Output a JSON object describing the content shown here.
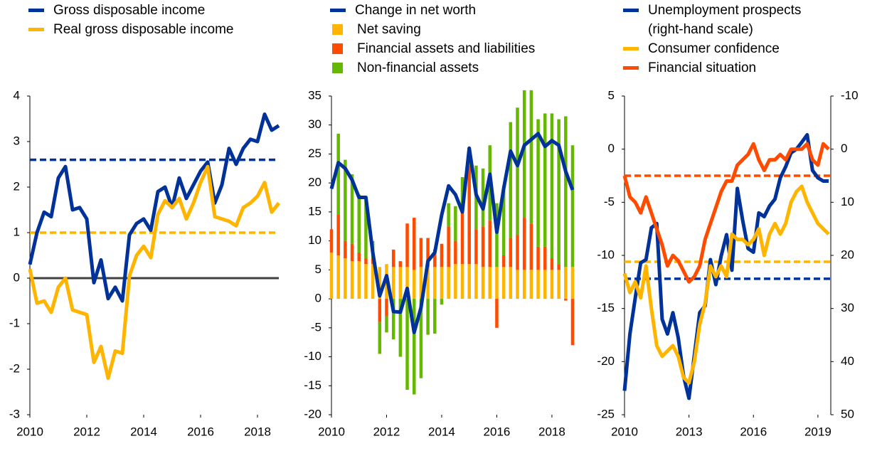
{
  "chart_data": [
    {
      "type": "line",
      "x": [
        2010,
        2010.25,
        2010.5,
        2010.75,
        2011,
        2011.25,
        2011.5,
        2011.75,
        2012,
        2012.25,
        2012.5,
        2012.75,
        2013,
        2013.25,
        2013.5,
        2013.75,
        2014,
        2014.25,
        2014.5,
        2014.75,
        2015,
        2015.25,
        2015.5,
        2015.75,
        2016,
        2016.25,
        2016.5,
        2016.75,
        2017,
        2017.25,
        2017.5,
        2017.75,
        2018,
        2018.25,
        2018.5,
        2018.75
      ],
      "series": [
        {
          "name": "Gross disposable income",
          "color": "#003299",
          "values": [
            0.3,
            1.0,
            1.45,
            1.35,
            2.2,
            2.45,
            1.5,
            1.55,
            1.3,
            -0.1,
            0.4,
            -0.45,
            -0.2,
            -0.5,
            0.95,
            1.2,
            1.3,
            1.05,
            1.9,
            2.0,
            1.55,
            2.2,
            1.75,
            2.05,
            2.35,
            2.55,
            1.65,
            2.05,
            2.85,
            2.5,
            2.85,
            3.05,
            3.0,
            3.6,
            3.25,
            3.35
          ]
        },
        {
          "name": "Real gross disposable income",
          "color": "#ffb400",
          "values": [
            0.2,
            -0.55,
            -0.5,
            -0.75,
            -0.2,
            0.0,
            -0.7,
            -0.75,
            -0.8,
            -1.85,
            -1.5,
            -2.2,
            -1.6,
            -1.65,
            0.05,
            0.5,
            0.7,
            0.45,
            1.4,
            1.7,
            1.55,
            1.75,
            1.3,
            1.65,
            2.1,
            2.45,
            1.35,
            1.3,
            1.25,
            1.15,
            1.55,
            1.65,
            1.8,
            2.1,
            1.45,
            1.65
          ]
        }
      ],
      "hlines": [
        {
          "value": 2.6,
          "color": "#003299"
        },
        {
          "value": 1.0,
          "color": "#ffb400"
        }
      ],
      "zero_line": true,
      "xlim": [
        2010,
        2018.75
      ],
      "xticks": [
        2010,
        2012,
        2014,
        2016,
        2018
      ],
      "ylim": [
        -3,
        4
      ],
      "yticks": [
        -3,
        -2,
        -1,
        0,
        1,
        2,
        3,
        4
      ]
    },
    {
      "type": "bar",
      "x": [
        2010,
        2010.25,
        2010.5,
        2010.75,
        2011,
        2011.25,
        2011.5,
        2011.75,
        2012,
        2012.25,
        2012.5,
        2012.75,
        2013,
        2013.25,
        2013.5,
        2013.75,
        2014,
        2014.25,
        2014.5,
        2014.75,
        2015,
        2015.25,
        2015.5,
        2015.75,
        2016,
        2016.25,
        2016.5,
        2016.75,
        2017,
        2017.25,
        2017.5,
        2017.75,
        2018,
        2018.25,
        2018.5,
        2018.75
      ],
      "series": [
        {
          "name": "Change in net worth",
          "color": "#003299",
          "type": "line",
          "values": [
            19,
            23.5,
            22.5,
            20.5,
            17.5,
            17.5,
            8,
            0.5,
            4,
            -2.2,
            -2.3,
            1.8,
            -5.8,
            -1.5,
            6.5,
            8,
            14.5,
            19.5,
            18,
            15,
            26,
            18,
            15.5,
            21.5,
            11.5,
            19,
            25.5,
            23,
            26.5,
            27.5,
            28.5,
            26.3,
            27.3,
            26.5,
            22,
            18.8
          ]
        },
        {
          "name": "Net saving",
          "color": "#ffb400",
          "type": "bar",
          "values": [
            8,
            7.5,
            7,
            6.5,
            6.5,
            6,
            6,
            5.5,
            6,
            5.5,
            5.5,
            5.5,
            5,
            5.5,
            5.5,
            5.5,
            5.5,
            5.5,
            6,
            6,
            6,
            6,
            5.5,
            5.5,
            5.5,
            5.5,
            5.5,
            5,
            5,
            5,
            5,
            5,
            5,
            5,
            5.5,
            5.5
          ]
        },
        {
          "name": "Financial assets and liabilities",
          "color": "#ff4b00",
          "type": "bar",
          "values": [
            4,
            7,
            3,
            3,
            1.5,
            1,
            1,
            -4,
            -3,
            3,
            1,
            7.5,
            9,
            5,
            5,
            3,
            4,
            7,
            4,
            9,
            17,
            6,
            7,
            8,
            -5,
            2,
            5,
            6,
            9,
            8,
            4,
            4,
            2,
            1,
            -0.3,
            -8
          ]
        },
        {
          "name": "Non-financial assets",
          "color": "#65b800",
          "type": "bar",
          "values": [
            0,
            14,
            14,
            12,
            10,
            10,
            3,
            -5.5,
            -2.8,
            -7,
            -10,
            -15.7,
            -16.5,
            -13.7,
            -6.2,
            -6,
            -1,
            4,
            6,
            6,
            2,
            11,
            10,
            13,
            11,
            12,
            20,
            22,
            22,
            23,
            22,
            23,
            25,
            25,
            26,
            21
          ]
        }
      ],
      "xlim": [
        2010,
        2018.75
      ],
      "xticks": [
        2010,
        2012,
        2014,
        2016,
        2018
      ],
      "ylim": [
        -20,
        35
      ],
      "yticks": [
        -20,
        -15,
        -10,
        -5,
        0,
        5,
        10,
        15,
        20,
        25,
        30,
        35
      ]
    },
    {
      "type": "line",
      "x": [
        2010,
        2010.25,
        2010.5,
        2010.75,
        2011,
        2011.25,
        2011.5,
        2011.75,
        2012,
        2012.25,
        2012.5,
        2012.75,
        2013,
        2013.25,
        2013.5,
        2013.75,
        2014,
        2014.25,
        2014.5,
        2014.75,
        2015,
        2015.25,
        2015.5,
        2015.75,
        2016,
        2016.25,
        2016.5,
        2016.75,
        2017,
        2017.25,
        2017.5,
        2017.75,
        2018,
        2018.25,
        2018.5,
        2018.75,
        2019,
        2019.25,
        2019.5
      ],
      "series": [
        {
          "name": "Unemployment prospects\n(right-hand scale)",
          "color": "#003299",
          "axis": "y2",
          "values": [
            45.5,
            34.8,
            28,
            21.4,
            20.8,
            14.8,
            14,
            32,
            34.8,
            30.8,
            35.5,
            42.8,
            46.9,
            38.8,
            30.8,
            29.5,
            20.8,
            25.5,
            20.1,
            16.1,
            22.8,
            7.4,
            13.4,
            18.7,
            19.4,
            12,
            12.7,
            10.7,
            9.4,
            5.4,
            3.3,
            0.7,
            0,
            -1.3,
            -2.7,
            4,
            5.4,
            6,
            6
          ]
        },
        {
          "name": "Consumer confidence",
          "color": "#ffb400",
          "values": [
            -11.7,
            -13.5,
            -12.5,
            -14,
            -11,
            -15,
            -18.5,
            -19.5,
            -19,
            -18.5,
            -19.5,
            -21.5,
            -22,
            -20,
            -16.5,
            -14.5,
            -11,
            -12,
            -11,
            -12,
            -8,
            -8.5,
            -8.5,
            -9,
            -8.5,
            -7.5,
            -10,
            -8,
            -7,
            -8,
            -7,
            -5,
            -4,
            -3.5,
            -5,
            -6,
            -7,
            -7.5,
            -8
          ]
        },
        {
          "name": "Financial situation",
          "color": "#ff4b00",
          "values": [
            -2.5,
            -4.5,
            -5,
            -6,
            -4.5,
            -6,
            -7.5,
            -9,
            -11,
            -10,
            -10.5,
            -11.5,
            -12.5,
            -12,
            -11,
            -8.5,
            -7,
            -5.5,
            -4,
            -3,
            -3,
            -1.5,
            -1,
            -0.5,
            0.5,
            -1,
            -2,
            -1,
            -1,
            -0.5,
            -1,
            0,
            0,
            0,
            0.5,
            -1,
            -1.5,
            0.5,
            0
          ]
        }
      ],
      "hlines": [
        {
          "value": -12.2,
          "color": "#003299"
        },
        {
          "value": -10.6,
          "color": "#ffb400"
        },
        {
          "value": -2.5,
          "color": "#ff4b00"
        }
      ],
      "xlim": [
        2010,
        2019.6
      ],
      "xticks": [
        2010,
        2013,
        2016,
        2019
      ],
      "ylim": [
        -25,
        5
      ],
      "yticks": [
        -25,
        -20,
        -15,
        -10,
        -5,
        0,
        5
      ],
      "y2lim": [
        50,
        -10
      ],
      "y2ticks": [
        50,
        40,
        30,
        20,
        10,
        0,
        -10
      ]
    }
  ]
}
